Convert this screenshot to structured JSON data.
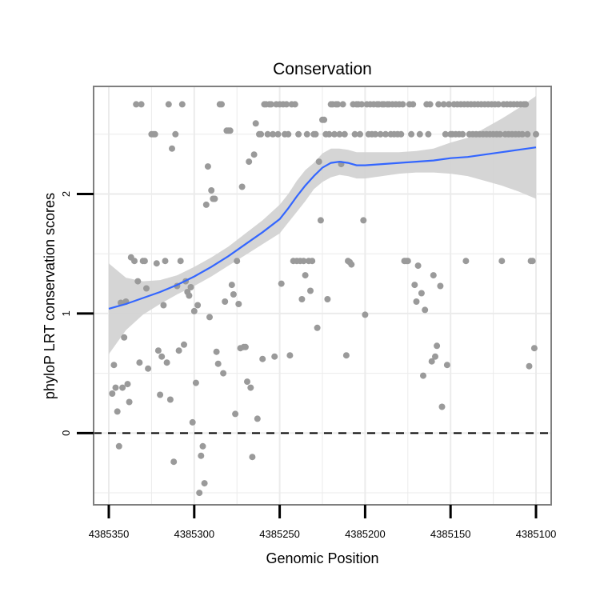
{
  "chart_data": {
    "type": "scatter",
    "title": "Conservation",
    "xlabel": "Genomic Position",
    "ylabel": "phyloP LRT conservation scores",
    "x_reversed": true,
    "xlim": [
      4385100,
      4385350
    ],
    "ylim": [
      -0.6,
      2.9
    ],
    "x_ticks": [
      4385350,
      4385300,
      4385250,
      4385200,
      4385150,
      4385100
    ],
    "y_ticks": [
      0,
      1,
      2
    ],
    "grid": true,
    "reference_line": {
      "y": 0,
      "style": "dashed"
    },
    "colors": {
      "points": "#9a9a9a",
      "smooth_line": "#3366ff",
      "confidence_band": "#d3d3d3",
      "panel_border": "#7f7f7f",
      "grid": "#ebebeb"
    },
    "series": [
      {
        "kind": "points",
        "points": [
          [
            4385348,
            0.33
          ],
          [
            4385347,
            0.57
          ],
          [
            4385346,
            0.38
          ],
          [
            4385345,
            0.18
          ],
          [
            4385344,
            -0.11
          ],
          [
            4385343,
            1.09
          ],
          [
            4385342,
            0.38
          ],
          [
            4385341,
            0.8
          ],
          [
            4385340,
            1.1
          ],
          [
            4385339,
            0.41
          ],
          [
            4385338,
            0.26
          ],
          [
            4385337,
            1.47
          ],
          [
            4385335,
            1.44
          ],
          [
            4385334,
            2.75
          ],
          [
            4385333,
            1.27
          ],
          [
            4385332,
            0.59
          ],
          [
            4385331,
            2.75
          ],
          [
            4385330,
            1.44
          ],
          [
            4385329,
            1.44
          ],
          [
            4385328,
            1.21
          ],
          [
            4385327,
            0.54
          ],
          [
            4385325,
            2.5
          ],
          [
            4385324,
            2.5
          ],
          [
            4385323,
            2.5
          ],
          [
            4385322,
            1.42
          ],
          [
            4385321,
            0.69
          ],
          [
            4385320,
            0.32
          ],
          [
            4385319,
            0.64
          ],
          [
            4385318,
            1.07
          ],
          [
            4385317,
            1.44
          ],
          [
            4385316,
            0.59
          ],
          [
            4385315,
            2.75
          ],
          [
            4385314,
            0.28
          ],
          [
            4385313,
            2.38
          ],
          [
            4385312,
            -0.24
          ],
          [
            4385311,
            2.5
          ],
          [
            4385310,
            1.23
          ],
          [
            4385309,
            0.69
          ],
          [
            4385308,
            1.44
          ],
          [
            4385307,
            2.75
          ],
          [
            4385306,
            0.74
          ],
          [
            4385305,
            1.27
          ],
          [
            4385304,
            1.18
          ],
          [
            4385303,
            1.15
          ],
          [
            4385302,
            1.22
          ],
          [
            4385301,
            0.09
          ],
          [
            4385300,
            1.02
          ],
          [
            4385299,
            0.42
          ],
          [
            4385298,
            1.07
          ],
          [
            4385297,
            -0.5
          ],
          [
            4385296,
            -0.19
          ],
          [
            4385295,
            -0.11
          ],
          [
            4385294,
            -0.42
          ],
          [
            4385293,
            1.91
          ],
          [
            4385292,
            2.23
          ],
          [
            4385291,
            0.97
          ],
          [
            4385290,
            2.03
          ],
          [
            4385289,
            1.96
          ],
          [
            4385288,
            1.96
          ],
          [
            4385287,
            0.68
          ],
          [
            4385286,
            0.58
          ],
          [
            4385285,
            2.75
          ],
          [
            4385284,
            2.75
          ],
          [
            4385283,
            0.5
          ],
          [
            4385282,
            1.1
          ],
          [
            4385281,
            2.53
          ],
          [
            4385280,
            2.53
          ],
          [
            4385279,
            2.53
          ],
          [
            4385278,
            1.24
          ],
          [
            4385277,
            1.16
          ],
          [
            4385276,
            0.16
          ],
          [
            4385275,
            1.44
          ],
          [
            4385274,
            1.08
          ],
          [
            4385273,
            0.71
          ],
          [
            4385272,
            2.06
          ],
          [
            4385271,
            0.72
          ],
          [
            4385270,
            0.72
          ],
          [
            4385269,
            0.43
          ],
          [
            4385268,
            2.27
          ],
          [
            4385267,
            0.38
          ],
          [
            4385266,
            -0.2
          ],
          [
            4385265,
            2.33
          ],
          [
            4385264,
            2.59
          ],
          [
            4385263,
            0.12
          ],
          [
            4385262,
            2.5
          ],
          [
            4385261,
            2.5
          ],
          [
            4385260,
            0.62
          ],
          [
            4385259,
            2.75
          ],
          [
            4385258,
            2.75
          ],
          [
            4385257,
            2.5
          ],
          [
            4385256,
            2.75
          ],
          [
            4385255,
            2.75
          ],
          [
            4385254,
            2.5
          ],
          [
            4385253,
            0.64
          ],
          [
            4385252,
            2.75
          ],
          [
            4385251,
            2.5
          ],
          [
            4385250,
            2.75
          ],
          [
            4385249,
            1.25
          ],
          [
            4385248,
            2.75
          ],
          [
            4385247,
            2.5
          ],
          [
            4385246,
            2.75
          ],
          [
            4385245,
            2.5
          ],
          [
            4385244,
            0.65
          ],
          [
            4385243,
            2.75
          ],
          [
            4385242,
            1.44
          ],
          [
            4385241,
            2.75
          ],
          [
            4385240,
            1.44
          ],
          [
            4385239,
            2.5
          ],
          [
            4385238,
            1.44
          ],
          [
            4385237,
            1.12
          ],
          [
            4385236,
            1.44
          ],
          [
            4385235,
            1.32
          ],
          [
            4385234,
            2.5
          ],
          [
            4385233,
            1.44
          ],
          [
            4385232,
            1.19
          ],
          [
            4385231,
            1.44
          ],
          [
            4385230,
            2.5
          ],
          [
            4385229,
            2.5
          ],
          [
            4385228,
            0.88
          ],
          [
            4385227,
            2.27
          ],
          [
            4385226,
            1.78
          ],
          [
            4385225,
            2.62
          ],
          [
            4385224,
            2.62
          ],
          [
            4385223,
            2.5
          ],
          [
            4385222,
            1.12
          ],
          [
            4385221,
            2.5
          ],
          [
            4385220,
            2.75
          ],
          [
            4385219,
            2.75
          ],
          [
            4385218,
            2.5
          ],
          [
            4385217,
            2.75
          ],
          [
            4385216,
            2.75
          ],
          [
            4385215,
            2.5
          ],
          [
            4385214,
            2.25
          ],
          [
            4385213,
            2.75
          ],
          [
            4385212,
            2.5
          ],
          [
            4385211,
            0.65
          ],
          [
            4385210,
            1.44
          ],
          [
            4385209,
            1.43
          ],
          [
            4385208,
            1.41
          ],
          [
            4385207,
            2.75
          ],
          [
            4385206,
            2.5
          ],
          [
            4385205,
            2.75
          ],
          [
            4385204,
            2.75
          ],
          [
            4385203,
            2.5
          ],
          [
            4385202,
            2.75
          ],
          [
            4385201,
            1.78
          ],
          [
            4385200,
            0.99
          ],
          [
            4385199,
            2.75
          ],
          [
            4385198,
            2.5
          ],
          [
            4385197,
            2.75
          ],
          [
            4385196,
            2.5
          ],
          [
            4385195,
            2.75
          ],
          [
            4385194,
            2.5
          ],
          [
            4385193,
            2.75
          ],
          [
            4385192,
            2.75
          ],
          [
            4385191,
            2.5
          ],
          [
            4385190,
            2.75
          ],
          [
            4385189,
            2.75
          ],
          [
            4385188,
            2.5
          ],
          [
            4385187,
            2.75
          ],
          [
            4385186,
            2.75
          ],
          [
            4385185,
            2.5
          ],
          [
            4385184,
            2.75
          ],
          [
            4385183,
            2.5
          ],
          [
            4385182,
            2.75
          ],
          [
            4385181,
            2.5
          ],
          [
            4385180,
            2.75
          ],
          [
            4385179,
            2.5
          ],
          [
            4385178,
            2.75
          ],
          [
            4385177,
            1.44
          ],
          [
            4385176,
            1.44
          ],
          [
            4385175,
            1.44
          ],
          [
            4385174,
            2.75
          ],
          [
            4385173,
            2.5
          ],
          [
            4385172,
            2.75
          ],
          [
            4385171,
            1.24
          ],
          [
            4385170,
            1.1
          ],
          [
            4385169,
            1.4
          ],
          [
            4385168,
            2.5
          ],
          [
            4385167,
            1.17
          ],
          [
            4385166,
            0.48
          ],
          [
            4385165,
            1.03
          ],
          [
            4385164,
            2.75
          ],
          [
            4385163,
            2.5
          ],
          [
            4385162,
            2.75
          ],
          [
            4385161,
            0.6
          ],
          [
            4385160,
            1.32
          ],
          [
            4385159,
            0.64
          ],
          [
            4385158,
            0.73
          ],
          [
            4385157,
            2.75
          ],
          [
            4385156,
            1.23
          ],
          [
            4385155,
            0.22
          ],
          [
            4385154,
            2.75
          ],
          [
            4385153,
            2.5
          ],
          [
            4385152,
            0.57
          ],
          [
            4385151,
            2.75
          ],
          [
            4385150,
            2.5
          ],
          [
            4385149,
            2.5
          ],
          [
            4385148,
            2.75
          ],
          [
            4385147,
            2.5
          ],
          [
            4385146,
            2.75
          ],
          [
            4385145,
            2.5
          ],
          [
            4385144,
            2.75
          ],
          [
            4385143,
            2.5
          ],
          [
            4385142,
            2.75
          ],
          [
            4385141,
            1.44
          ],
          [
            4385140,
            2.75
          ],
          [
            4385139,
            2.5
          ],
          [
            4385138,
            2.75
          ],
          [
            4385137,
            2.5
          ],
          [
            4385136,
            2.75
          ],
          [
            4385135,
            2.5
          ],
          [
            4385134,
            2.75
          ],
          [
            4385133,
            2.5
          ],
          [
            4385132,
            2.75
          ],
          [
            4385131,
            2.5
          ],
          [
            4385130,
            2.75
          ],
          [
            4385129,
            2.5
          ],
          [
            4385128,
            2.75
          ],
          [
            4385127,
            2.5
          ],
          [
            4385126,
            2.75
          ],
          [
            4385125,
            2.5
          ],
          [
            4385124,
            2.75
          ],
          [
            4385123,
            2.5
          ],
          [
            4385122,
            2.75
          ],
          [
            4385121,
            2.5
          ],
          [
            4385120,
            1.44
          ],
          [
            4385119,
            2.75
          ],
          [
            4385118,
            2.5
          ],
          [
            4385117,
            2.75
          ],
          [
            4385116,
            2.5
          ],
          [
            4385115,
            2.75
          ],
          [
            4385114,
            2.5
          ],
          [
            4385113,
            2.75
          ],
          [
            4385112,
            2.5
          ],
          [
            4385111,
            2.75
          ],
          [
            4385110,
            2.5
          ],
          [
            4385109,
            2.75
          ],
          [
            4385108,
            2.5
          ],
          [
            4385107,
            2.75
          ],
          [
            4385106,
            2.75
          ],
          [
            4385105,
            2.5
          ],
          [
            4385104,
            0.56
          ],
          [
            4385103,
            1.44
          ],
          [
            4385102,
            1.44
          ],
          [
            4385101,
            0.71
          ],
          [
            4385100,
            2.5
          ]
        ]
      },
      {
        "kind": "smooth",
        "x": [
          4385350,
          4385340,
          4385330,
          4385320,
          4385310,
          4385300,
          4385290,
          4385280,
          4385270,
          4385260,
          4385250,
          4385245,
          4385240,
          4385235,
          4385230,
          4385225,
          4385220,
          4385215,
          4385210,
          4385205,
          4385200,
          4385190,
          4385180,
          4385170,
          4385160,
          4385150,
          4385140,
          4385130,
          4385120,
          4385110,
          4385100
        ],
        "y": [
          1.04,
          1.08,
          1.13,
          1.18,
          1.24,
          1.31,
          1.39,
          1.48,
          1.58,
          1.68,
          1.79,
          1.88,
          1.98,
          2.07,
          2.15,
          2.22,
          2.26,
          2.27,
          2.26,
          2.24,
          2.24,
          2.25,
          2.26,
          2.27,
          2.28,
          2.3,
          2.31,
          2.33,
          2.35,
          2.37,
          2.39
        ],
        "lower": [
          0.66,
          0.86,
          0.99,
          1.08,
          1.16,
          1.23,
          1.31,
          1.4,
          1.49,
          1.58,
          1.67,
          1.76,
          1.85,
          1.94,
          2.04,
          2.1,
          2.14,
          2.16,
          2.15,
          2.13,
          2.13,
          2.15,
          2.17,
          2.18,
          2.18,
          2.17,
          2.15,
          2.11,
          2.07,
          2.02,
          1.96
        ],
        "upper": [
          1.42,
          1.3,
          1.27,
          1.28,
          1.32,
          1.39,
          1.47,
          1.56,
          1.67,
          1.78,
          1.91,
          2.0,
          2.11,
          2.2,
          2.26,
          2.34,
          2.38,
          2.38,
          2.37,
          2.35,
          2.35,
          2.35,
          2.35,
          2.36,
          2.38,
          2.43,
          2.47,
          2.55,
          2.63,
          2.72,
          2.82
        ]
      }
    ]
  }
}
